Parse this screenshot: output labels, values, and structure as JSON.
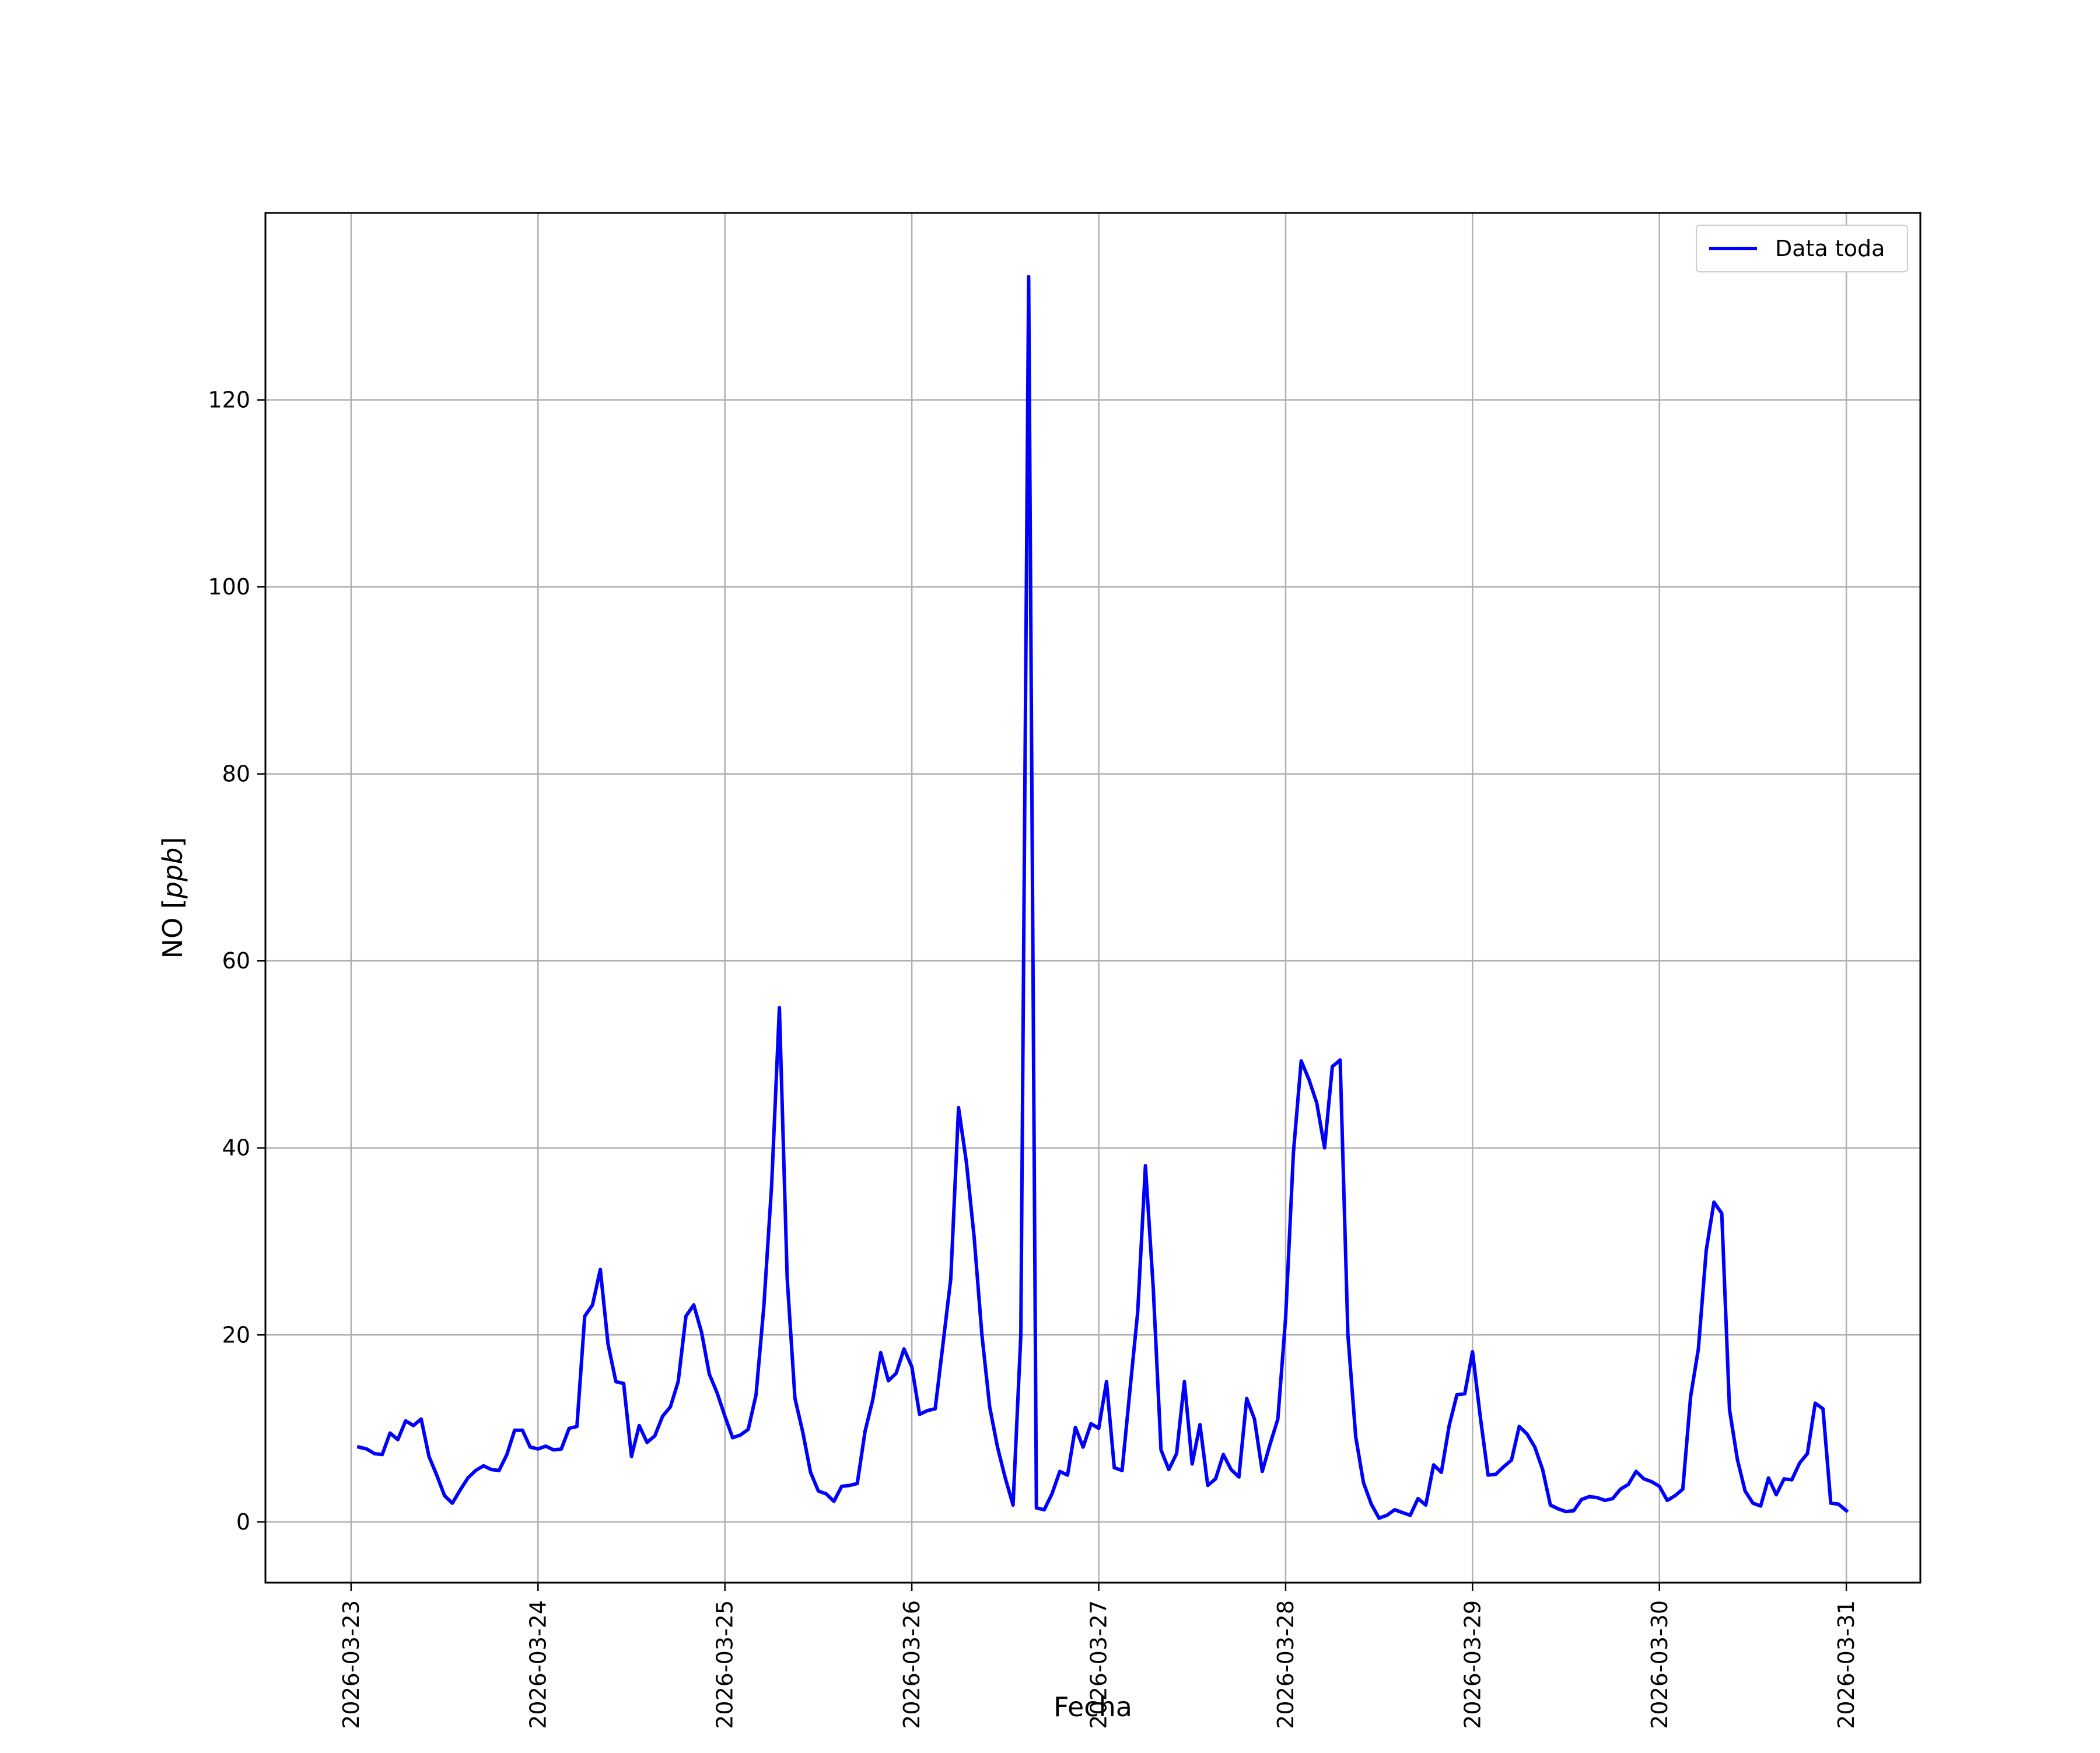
{
  "chart_data": {
    "type": "line",
    "xlabel": "Fecha",
    "ylabel": "NO [ppb]",
    "ylabel_parts": {
      "prefix": "NO [",
      "italic": "ppb",
      "suffix": "]"
    },
    "x_tick_labels": [
      "2026-03-23",
      "2026-03-24",
      "2026-03-25",
      "2026-03-26",
      "2026-03-27",
      "2026-03-28",
      "2026-03-29",
      "2026-03-30",
      "2026-03-31"
    ],
    "y_ticks": [
      0,
      20,
      40,
      60,
      80,
      100,
      120
    ],
    "xlim": [
      "2026-03-22 13:00",
      "2026-03-31 09:30"
    ],
    "ylim": [
      -6.5,
      140
    ],
    "grid": true,
    "legend_position": "top-right",
    "color": "#0000ff",
    "series": [
      {
        "name": "Data toda",
        "color": "#0000ff",
        "x": [
          "2026-03-23 01:00",
          "2026-03-23 02:00",
          "2026-03-23 03:00",
          "2026-03-23 04:00",
          "2026-03-23 05:00",
          "2026-03-23 06:00",
          "2026-03-23 07:00",
          "2026-03-23 08:00",
          "2026-03-23 09:00",
          "2026-03-23 10:00",
          "2026-03-23 11:00",
          "2026-03-23 12:00",
          "2026-03-23 13:00",
          "2026-03-23 14:00",
          "2026-03-23 15:00",
          "2026-03-23 16:00",
          "2026-03-23 17:00",
          "2026-03-23 18:00",
          "2026-03-23 19:00",
          "2026-03-23 20:00",
          "2026-03-23 21:00",
          "2026-03-23 22:00",
          "2026-03-23 23:00",
          "2026-03-24 00:00",
          "2026-03-24 01:00",
          "2026-03-24 02:00",
          "2026-03-24 03:00",
          "2026-03-24 04:00",
          "2026-03-24 05:00",
          "2026-03-24 06:00",
          "2026-03-24 07:00",
          "2026-03-24 08:00",
          "2026-03-24 09:00",
          "2026-03-24 10:00",
          "2026-03-24 11:00",
          "2026-03-24 12:00",
          "2026-03-24 13:00",
          "2026-03-24 14:00",
          "2026-03-24 15:00",
          "2026-03-24 16:00",
          "2026-03-24 17:00",
          "2026-03-24 18:00",
          "2026-03-24 19:00",
          "2026-03-24 20:00",
          "2026-03-24 21:00",
          "2026-03-24 22:00",
          "2026-03-24 23:00",
          "2026-03-25 00:00",
          "2026-03-25 01:00",
          "2026-03-25 02:00",
          "2026-03-25 03:00",
          "2026-03-25 04:00",
          "2026-03-25 05:00",
          "2026-03-25 06:00",
          "2026-03-25 07:00",
          "2026-03-25 08:00",
          "2026-03-25 09:00",
          "2026-03-25 10:00",
          "2026-03-25 11:00",
          "2026-03-25 12:00",
          "2026-03-25 13:00",
          "2026-03-25 14:00",
          "2026-03-25 15:00",
          "2026-03-25 16:00",
          "2026-03-25 17:00",
          "2026-03-25 18:00",
          "2026-03-25 19:00",
          "2026-03-25 20:00",
          "2026-03-25 21:00",
          "2026-03-25 22:00",
          "2026-03-25 23:00",
          "2026-03-26 00:00",
          "2026-03-26 01:00",
          "2026-03-26 02:00",
          "2026-03-26 03:00",
          "2026-03-26 04:00",
          "2026-03-26 05:00",
          "2026-03-26 06:00",
          "2026-03-26 07:00",
          "2026-03-26 08:00",
          "2026-03-26 09:00",
          "2026-03-26 10:00",
          "2026-03-26 11:00",
          "2026-03-26 12:00",
          "2026-03-26 13:00",
          "2026-03-26 14:00",
          "2026-03-26 15:00",
          "2026-03-26 16:00",
          "2026-03-26 17:00",
          "2026-03-26 18:00",
          "2026-03-26 19:00",
          "2026-03-26 20:00",
          "2026-03-26 21:00",
          "2026-03-26 22:00",
          "2026-03-26 23:00",
          "2026-03-27 00:00",
          "2026-03-27 01:00",
          "2026-03-27 02:00",
          "2026-03-27 03:00",
          "2026-03-27 04:00",
          "2026-03-27 05:00",
          "2026-03-27 06:00",
          "2026-03-27 07:00",
          "2026-03-27 08:00",
          "2026-03-27 09:00",
          "2026-03-27 10:00",
          "2026-03-27 11:00",
          "2026-03-27 12:00",
          "2026-03-27 13:00",
          "2026-03-27 14:00",
          "2026-03-27 15:00",
          "2026-03-27 16:00",
          "2026-03-27 17:00",
          "2026-03-27 18:00",
          "2026-03-27 19:00",
          "2026-03-27 20:00",
          "2026-03-27 21:00",
          "2026-03-27 22:00",
          "2026-03-27 23:00",
          "2026-03-28 00:00",
          "2026-03-28 01:00",
          "2026-03-28 02:00",
          "2026-03-28 03:00",
          "2026-03-28 04:00",
          "2026-03-28 05:00",
          "2026-03-28 06:00",
          "2026-03-28 07:00",
          "2026-03-28 08:00",
          "2026-03-28 09:00",
          "2026-03-28 10:00",
          "2026-03-28 11:00",
          "2026-03-28 12:00",
          "2026-03-28 13:00",
          "2026-03-28 14:00",
          "2026-03-28 15:00",
          "2026-03-28 16:00",
          "2026-03-28 17:00",
          "2026-03-28 18:00",
          "2026-03-28 19:00",
          "2026-03-28 20:00",
          "2026-03-28 21:00",
          "2026-03-28 22:00",
          "2026-03-28 23:00",
          "2026-03-29 00:00",
          "2026-03-29 01:00",
          "2026-03-29 02:00",
          "2026-03-29 03:00",
          "2026-03-29 04:00",
          "2026-03-29 05:00",
          "2026-03-29 06:00",
          "2026-03-29 07:00",
          "2026-03-29 08:00",
          "2026-03-29 09:00",
          "2026-03-29 10:00",
          "2026-03-29 11:00",
          "2026-03-29 12:00",
          "2026-03-29 13:00",
          "2026-03-29 14:00",
          "2026-03-29 15:00",
          "2026-03-29 16:00",
          "2026-03-29 17:00",
          "2026-03-29 18:00",
          "2026-03-29 19:00",
          "2026-03-29 20:00",
          "2026-03-29 21:00",
          "2026-03-29 22:00",
          "2026-03-29 23:00",
          "2026-03-30 00:00",
          "2026-03-30 01:00",
          "2026-03-30 02:00",
          "2026-03-30 03:00",
          "2026-03-30 04:00",
          "2026-03-30 05:00",
          "2026-03-30 06:00",
          "2026-03-30 07:00",
          "2026-03-30 08:00",
          "2026-03-30 09:00",
          "2026-03-30 10:00",
          "2026-03-30 11:00",
          "2026-03-30 12:00",
          "2026-03-30 13:00",
          "2026-03-30 14:00",
          "2026-03-30 15:00",
          "2026-03-30 16:00",
          "2026-03-30 17:00",
          "2026-03-30 18:00",
          "2026-03-30 19:00",
          "2026-03-30 20:00",
          "2026-03-30 21:00",
          "2026-03-30 22:00",
          "2026-03-30 23:00",
          "2026-03-31 00:00"
        ],
        "y": [
          8,
          7.8,
          7.3,
          7.2,
          9.5,
          8.8,
          10.8,
          10.3,
          11,
          7,
          5,
          2.8,
          2,
          3.4,
          4.7,
          5.5,
          6,
          5.6,
          5.5,
          7.2,
          9.8,
          9.8,
          8,
          7.8,
          8.1,
          7.7,
          7.8,
          10,
          10.2,
          22,
          23.2,
          27,
          19,
          15,
          14.8,
          7,
          10.3,
          8.5,
          9.2,
          11.3,
          12.3,
          15,
          22,
          23.2,
          20.3,
          15.8,
          13.8,
          11.3,
          9,
          9.3,
          9.9,
          13.6,
          23,
          36,
          55,
          26,
          13.2,
          9.6,
          5.3,
          3.3,
          3,
          2.2,
          3.8,
          3.9,
          4.1,
          9.7,
          13.1,
          18.1,
          15.1,
          15.9,
          18.5,
          16.6,
          11.5,
          11.9,
          12.1,
          19,
          26,
          44.3,
          38.5,
          30.5,
          20,
          12.3,
          8,
          4.7,
          1.8,
          20,
          133.2,
          1.5,
          1.3,
          3,
          5.4,
          5,
          10.1,
          8,
          10.5,
          10,
          15,
          5.8,
          5.5,
          14,
          22.4,
          38.1,
          25,
          7.7,
          5.6,
          7.3,
          15,
          6.2,
          10.4,
          3.9,
          4.6,
          7.2,
          5.6,
          4.8,
          13.2,
          11,
          5.4,
          8.3,
          11,
          21.8,
          39.5,
          49.3,
          47.3,
          44.8,
          40,
          48.7,
          49.4,
          20,
          9.1,
          4.2,
          1.9,
          0.4,
          0.7,
          1.3,
          1,
          0.7,
          2.5,
          1.8,
          6.1,
          5.3,
          10.3,
          13.6,
          13.7,
          18.2,
          11.2,
          5,
          5.1,
          5.9,
          6.6,
          10.2,
          9.4,
          8,
          5.6,
          1.8,
          1.4,
          1.1,
          1.2,
          2.4,
          2.7,
          2.6,
          2.3,
          2.5,
          3.5,
          4,
          5.4,
          4.6,
          4.3,
          3.8,
          2.3,
          2.8,
          3.5,
          13.4,
          18.5,
          29,
          34.2,
          33,
          12,
          6.7,
          3.3,
          2,
          1.7,
          4.7,
          2.9,
          4.6,
          4.5,
          6.3,
          7.3,
          12.7,
          12.1,
          2,
          1.9,
          1.2
        ]
      }
    ]
  }
}
